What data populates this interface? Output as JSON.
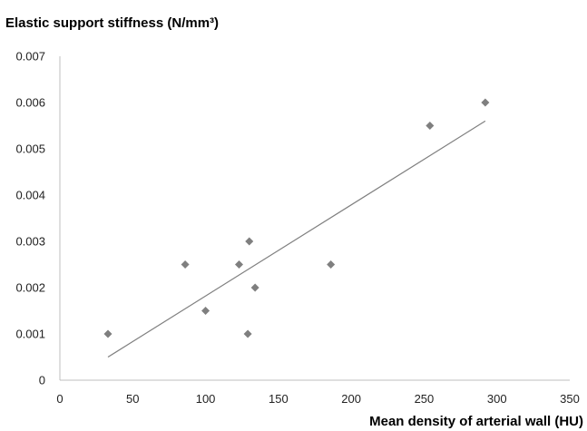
{
  "chart_data": {
    "type": "scatter",
    "title": "",
    "ylabel": "Elastic support stiffness (N/mm³)",
    "xlabel": "Mean density of arterial wall (HU)",
    "xlim": [
      0,
      350
    ],
    "ylim": [
      0,
      0.007
    ],
    "x_ticks": [
      "0",
      "50",
      "100",
      "150",
      "200",
      "250",
      "300",
      "350"
    ],
    "y_ticks": [
      "0",
      "0.001",
      "0.002",
      "0.003",
      "0.004",
      "0.005",
      "0.006",
      "0.007"
    ],
    "grid": false,
    "legend": "none",
    "marker": "diamond",
    "marker_color": "#7f7f7f",
    "trendline_color": "#7f7f7f",
    "points": [
      {
        "x": 33,
        "y": 0.001
      },
      {
        "x": 86,
        "y": 0.0025
      },
      {
        "x": 100,
        "y": 0.0015
      },
      {
        "x": 123,
        "y": 0.0025
      },
      {
        "x": 129,
        "y": 0.001
      },
      {
        "x": 130,
        "y": 0.003
      },
      {
        "x": 134,
        "y": 0.002
      },
      {
        "x": 186,
        "y": 0.0025
      },
      {
        "x": 254,
        "y": 0.0055
      },
      {
        "x": 292,
        "y": 0.006
      }
    ],
    "trendline": {
      "type": "linear",
      "x_range": [
        33,
        292
      ],
      "y_start": 0.0005,
      "y_end": 0.0056
    }
  }
}
